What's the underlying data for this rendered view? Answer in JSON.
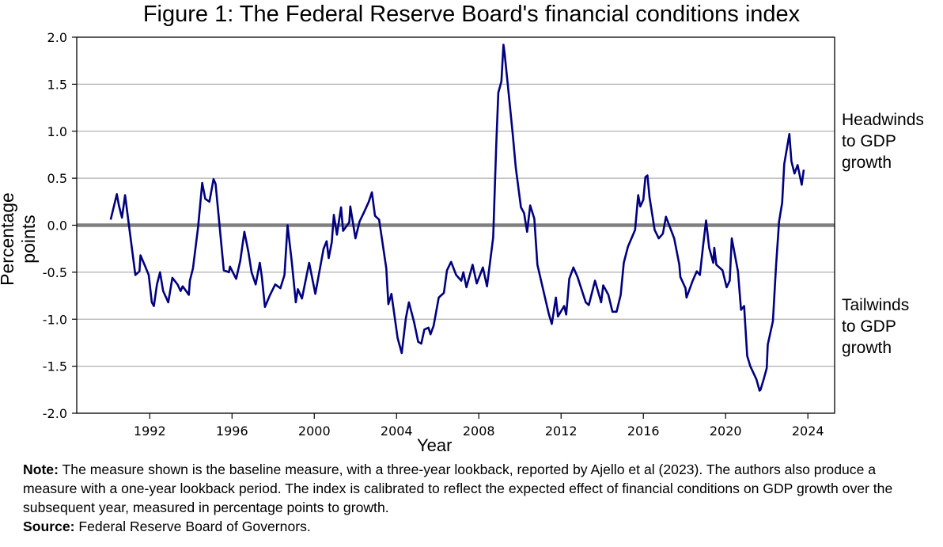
{
  "chart_data": {
    "type": "line",
    "title": "Figure 1: The Federal Reserve Board's financial conditions index",
    "xlabel": "Year",
    "ylabel": "Percentage points",
    "xlim": [
      1988.45,
      2025.3
    ],
    "ylim": [
      -2.0,
      2.0
    ],
    "x_ticks": [
      1992,
      1996,
      2000,
      2004,
      2008,
      2012,
      2016,
      2020,
      2024
    ],
    "y_ticks": [
      "2.0",
      "1.5",
      "1.0",
      "0.5",
      "0.0",
      "-0.5",
      "-1.0",
      "-1.5",
      "-2.0"
    ],
    "grid": "horizontal",
    "zero_line": true,
    "line_color": "#000080",
    "grid_color": "#b0b0b0",
    "zero_line_color": "#808080",
    "annotations": {
      "top": [
        "Headwinds",
        "to GDP",
        "growth"
      ],
      "bottom": [
        "Tailwinds",
        "to GDP",
        "growth"
      ]
    },
    "series": [
      {
        "x": [
          1990.1,
          1990.4,
          1990.5,
          1990.65,
          1990.8,
          1991.0,
          1991.3,
          1991.5,
          1991.55,
          1991.8,
          1991.95,
          1992.1,
          1992.2,
          1992.35,
          1992.5,
          1992.65,
          1992.9,
          1993.1,
          1993.35,
          1993.5,
          1993.6,
          1993.9,
          1993.95,
          1994.1,
          1994.35,
          1994.55,
          1994.7,
          1994.9,
          1995.1,
          1995.2,
          1995.4,
          1995.6,
          1995.85,
          1995.9,
          1996.2,
          1996.4,
          1996.6,
          1996.8,
          1996.95,
          1997.15,
          1997.35,
          1997.45,
          1997.6,
          1997.85,
          1998.1,
          1998.35,
          1998.55,
          1998.7,
          1998.9,
          1999.1,
          1999.2,
          1999.4,
          1999.75,
          2000.05,
          2000.2,
          2000.45,
          2000.6,
          2000.7,
          2000.85,
          2000.95,
          2001.1,
          2001.3,
          2001.4,
          2001.7,
          2001.75,
          2002.0,
          2002.2,
          2002.4,
          2002.65,
          2002.8,
          2002.95,
          2003.15,
          2003.5,
          2003.6,
          2003.75,
          2004.05,
          2004.25,
          2004.45,
          2004.6,
          2004.85,
          2005.05,
          2005.2,
          2005.35,
          2005.55,
          2005.65,
          2005.8,
          2006.05,
          2006.3,
          2006.45,
          2006.65,
          2006.9,
          2007.15,
          2007.25,
          2007.4,
          2007.7,
          2007.9,
          2008.2,
          2008.4,
          2008.7,
          2008.85,
          2008.95,
          2009.1,
          2009.2,
          2009.25,
          2009.45,
          2009.65,
          2009.8,
          2010.05,
          2010.2,
          2010.35,
          2010.5,
          2010.7,
          2010.85,
          2011.05,
          2011.4,
          2011.55,
          2011.75,
          2011.85,
          2012.15,
          2012.25,
          2012.4,
          2012.6,
          2012.8,
          2013.2,
          2013.35,
          2013.65,
          2013.95,
          2014.05,
          2014.3,
          2014.5,
          2014.7,
          2014.9,
          2015.05,
          2015.25,
          2015.6,
          2015.75,
          2015.85,
          2016.0,
          2016.1,
          2016.2,
          2016.3,
          2016.55,
          2016.75,
          2016.95,
          2017.1,
          2017.5,
          2017.75,
          2017.8,
          2018.05,
          2018.1,
          2018.4,
          2018.6,
          2018.75,
          2018.9,
          2019.05,
          2019.2,
          2019.4,
          2019.45,
          2019.55,
          2019.85,
          2020.05,
          2020.2,
          2020.3,
          2020.6,
          2020.75,
          2020.9,
          2021.05,
          2021.2,
          2021.5,
          2021.65,
          2021.7,
          2021.85,
          2022.0,
          2022.05,
          2022.3,
          2022.45,
          2022.6,
          2022.75,
          2022.85,
          2023.1,
          2023.2,
          2023.35,
          2023.5,
          2023.7,
          2023.8
        ],
        "y": [
          0.06,
          0.33,
          0.21,
          0.08,
          0.32,
          -0.02,
          -0.53,
          -0.49,
          -0.32,
          -0.45,
          -0.53,
          -0.82,
          -0.86,
          -0.63,
          -0.5,
          -0.7,
          -0.82,
          -0.56,
          -0.63,
          -0.7,
          -0.65,
          -0.74,
          -0.59,
          -0.46,
          -0.02,
          0.45,
          0.28,
          0.25,
          0.49,
          0.44,
          -0.02,
          -0.48,
          -0.5,
          -0.44,
          -0.57,
          -0.38,
          -0.07,
          -0.29,
          -0.5,
          -0.63,
          -0.4,
          -0.55,
          -0.87,
          -0.74,
          -0.63,
          -0.67,
          -0.53,
          0.0,
          -0.38,
          -0.82,
          -0.68,
          -0.78,
          -0.4,
          -0.73,
          -0.55,
          -0.25,
          -0.17,
          -0.35,
          -0.18,
          0.11,
          -0.1,
          0.19,
          -0.06,
          0.03,
          0.2,
          -0.14,
          0.04,
          0.13,
          0.25,
          0.35,
          0.1,
          0.06,
          -0.46,
          -0.84,
          -0.73,
          -1.2,
          -1.36,
          -0.99,
          -0.82,
          -1.03,
          -1.24,
          -1.26,
          -1.11,
          -1.09,
          -1.16,
          -1.07,
          -0.77,
          -0.72,
          -0.48,
          -0.39,
          -0.53,
          -0.59,
          -0.5,
          -0.66,
          -0.42,
          -0.62,
          -0.45,
          -0.65,
          -0.13,
          0.86,
          1.41,
          1.53,
          1.92,
          1.84,
          1.41,
          0.97,
          0.61,
          0.19,
          0.13,
          -0.07,
          0.21,
          0.07,
          -0.42,
          -0.61,
          -0.94,
          -1.05,
          -0.77,
          -0.97,
          -0.86,
          -0.95,
          -0.57,
          -0.45,
          -0.55,
          -0.82,
          -0.85,
          -0.59,
          -0.82,
          -0.64,
          -0.74,
          -0.92,
          -0.92,
          -0.74,
          -0.4,
          -0.23,
          -0.05,
          0.32,
          0.2,
          0.27,
          0.51,
          0.53,
          0.3,
          -0.05,
          -0.14,
          -0.09,
          0.09,
          -0.14,
          -0.42,
          -0.55,
          -0.67,
          -0.77,
          -0.59,
          -0.49,
          -0.53,
          -0.23,
          0.05,
          -0.24,
          -0.4,
          -0.24,
          -0.42,
          -0.48,
          -0.66,
          -0.59,
          -0.14,
          -0.49,
          -0.9,
          -0.86,
          -1.39,
          -1.5,
          -1.64,
          -1.76,
          -1.75,
          -1.64,
          -1.52,
          -1.27,
          -1.02,
          -0.44,
          0.04,
          0.24,
          0.65,
          0.97,
          0.68,
          0.55,
          0.64,
          0.43,
          0.59
        ]
      }
    ]
  },
  "note": {
    "label": "Note:",
    "text": " The measure shown is the baseline measure, with a three-year lookback, reported by Ajello et al (2023). The authors also produce a measure with a one-year lookback period. The index is calibrated to reflect the expected effect of financial conditions on GDP growth over the subsequent year, measured in percentage points to growth."
  },
  "source": {
    "label": "Source:",
    "text": " Federal Reserve Board of Governors."
  }
}
